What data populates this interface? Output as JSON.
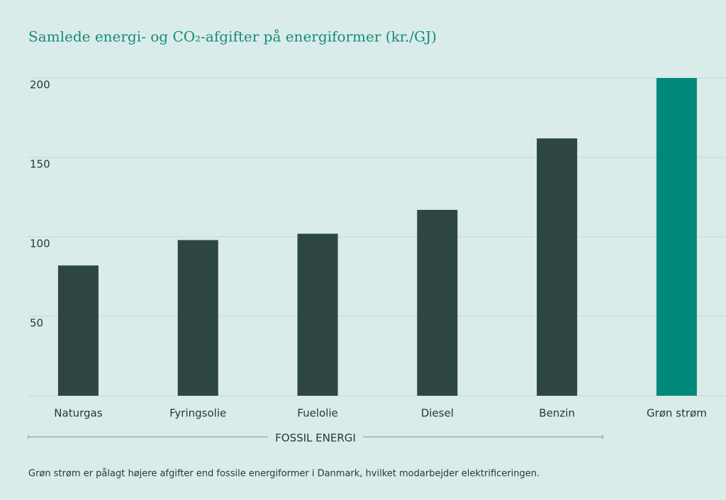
{
  "chart_data": {
    "type": "bar",
    "title": "Samlede energi- og CO₂-afgifter på energiformer (kr./GJ)",
    "categories": [
      "Naturgas",
      "Fyringsolie",
      "Fuelolie",
      "Diesel",
      "Benzin",
      "Grøn strøm"
    ],
    "values": [
      82,
      98,
      102,
      117,
      162,
      200
    ],
    "colors": [
      "#2e4641",
      "#2e4641",
      "#2e4641",
      "#2e4641",
      "#2e4641",
      "#00897b"
    ],
    "ylim": [
      0,
      200
    ],
    "yticks": [
      50,
      100,
      150,
      200
    ],
    "grid": true,
    "group": {
      "label": "FOSSIL ENERGI",
      "count": 5
    },
    "note": "Grøn strøm er pålagt højere afgifter end fossile energiformer i Danmark, hvilket modarbejder elektrificeringen."
  }
}
